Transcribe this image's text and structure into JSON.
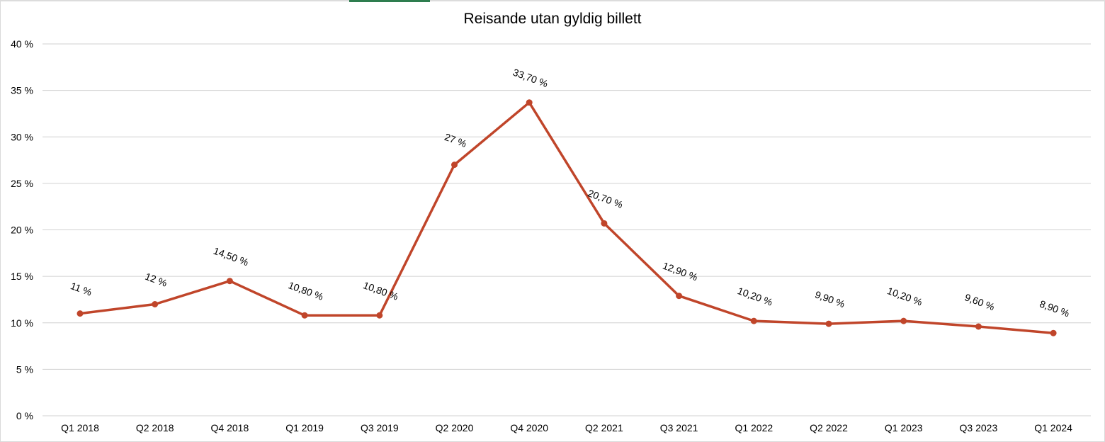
{
  "chart_data": {
    "type": "line",
    "title": "Reisande utan gyldig billett",
    "xlabel": "",
    "ylabel": "",
    "ylim": [
      0,
      40
    ],
    "y_ticks": [
      "0 %",
      "5 %",
      "10 %",
      "15 %",
      "20 %",
      "25 %",
      "30 %",
      "35 %",
      "40 %"
    ],
    "y_tick_values": [
      0,
      5,
      10,
      15,
      20,
      25,
      30,
      35,
      40
    ],
    "grid": true,
    "legend": "none",
    "color": "#c0452a",
    "categories": [
      "Q1 2018",
      "Q2 2018",
      "Q4 2018",
      "Q1 2019",
      "Q3 2019",
      "Q2 2020",
      "Q4 2020",
      "Q2 2021",
      "Q3 2021",
      "Q1 2022",
      "Q2 2022",
      "Q1 2023",
      "Q3 2023",
      "Q1 2024"
    ],
    "values": [
      11,
      12,
      14.5,
      10.8,
      10.8,
      27,
      33.7,
      20.7,
      12.9,
      10.2,
      9.9,
      10.2,
      9.6,
      8.9
    ],
    "data_labels": [
      "11 %",
      "12 %",
      "14,50 %",
      "10,80 %",
      "10,80 %",
      "27 %",
      "33,70 %",
      "20,70 %",
      "12,90 %",
      "10,20 %",
      "9,90 %",
      "10,20 %",
      "9,60 %",
      "8,90 %"
    ]
  }
}
